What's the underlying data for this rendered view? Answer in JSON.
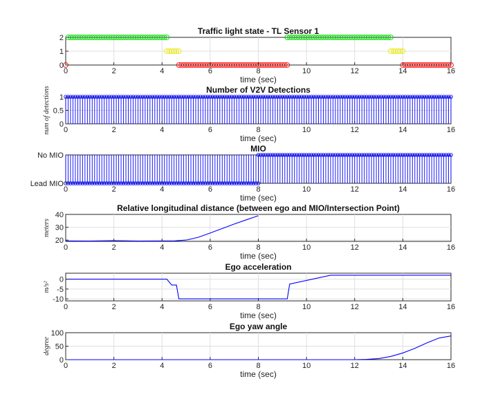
{
  "chart_data": [
    {
      "type": "scatter",
      "title": "Traffic light state - TL Sensor 1",
      "xlabel": "time (sec)",
      "ylabel": "",
      "xlim": [
        0,
        16
      ],
      "ylim": [
        0,
        2
      ],
      "xticks": [
        0,
        2,
        4,
        6,
        8,
        10,
        12,
        14,
        16
      ],
      "yticks": [
        0,
        1,
        2
      ],
      "ytick_labels": [
        "0",
        "1",
        "2"
      ],
      "grid": true,
      "series": [
        {
          "color": "#ff0000",
          "marker": "circle",
          "x": [
            0,
            0
          ],
          "y": [
            0,
            0
          ]
        },
        {
          "color": "#00dd00",
          "marker": "circle",
          "x": [
            0.1,
            4.2
          ],
          "y": [
            2,
            2
          ]
        },
        {
          "color": "#e8e800",
          "marker": "circle",
          "x": [
            4.2,
            4.7
          ],
          "y": [
            1,
            1
          ]
        },
        {
          "color": "#ff0000",
          "marker": "circle",
          "x": [
            4.7,
            9.2
          ],
          "y": [
            0,
            0
          ]
        },
        {
          "color": "#00dd00",
          "marker": "circle",
          "x": [
            9.2,
            13.5
          ],
          "y": [
            2,
            2
          ]
        },
        {
          "color": "#e8e800",
          "marker": "circle",
          "x": [
            13.5,
            14.0
          ],
          "y": [
            1,
            1
          ]
        },
        {
          "color": "#ff0000",
          "marker": "circle",
          "x": [
            14.0,
            16.0
          ],
          "y": [
            0,
            0
          ]
        }
      ]
    },
    {
      "type": "stem",
      "title": "Number of V2V Detections",
      "xlabel": "time (sec)",
      "ylabel": "num of detections",
      "xlim": [
        0,
        16
      ],
      "ylim": [
        0,
        1
      ],
      "xticks": [
        0,
        2,
        4,
        6,
        8,
        10,
        12,
        14,
        16
      ],
      "yticks": [
        0,
        0.5,
        1
      ],
      "ytick_labels": [
        "0",
        "0.5",
        "1"
      ],
      "grid": true,
      "series": [
        {
          "color": "#0000ff",
          "marker": "circle",
          "x_range": [
            0,
            16
          ],
          "step": 0.1,
          "value": 1
        }
      ]
    },
    {
      "type": "stem",
      "title": "MIO",
      "xlabel": "time (sec)",
      "ylabel": "",
      "xlim": [
        0,
        16
      ],
      "ylim": [
        0,
        1
      ],
      "xticks": [
        0,
        2,
        4,
        6,
        8,
        10,
        12,
        14,
        16
      ],
      "yticks": [
        0,
        1
      ],
      "ytick_labels": [
        "Lead MIO",
        "No MIO"
      ],
      "grid": true,
      "series": [
        {
          "color": "#0000ff",
          "marker": "circle",
          "x_range": [
            0,
            8
          ],
          "step": 0.1,
          "value": 0,
          "stem_to": 1
        },
        {
          "color": "#0000ff",
          "marker": "circle",
          "x_range": [
            8,
            16
          ],
          "step": 0.1,
          "value": 1
        }
      ]
    },
    {
      "type": "line",
      "title": "Relative longitudinal distance (between ego and MIO/Intersection Point)",
      "xlabel": "time (sec)",
      "ylabel": "meters",
      "xlim": [
        0,
        16
      ],
      "ylim": [
        19,
        40
      ],
      "xticks": [
        0,
        2,
        4,
        6,
        8,
        10,
        12,
        14,
        16
      ],
      "yticks": [
        20,
        30,
        40
      ],
      "ytick_labels": [
        "20",
        "30",
        "40"
      ],
      "grid": true,
      "series": [
        {
          "color": "#0000ff",
          "x": [
            0,
            1,
            2,
            3,
            4,
            4.5,
            5,
            5.5,
            6,
            6.5,
            7,
            7.5,
            8
          ],
          "y": [
            19.3,
            19.2,
            19.5,
            19.2,
            19.3,
            19.3,
            20.0,
            22.2,
            25.5,
            29.0,
            32.5,
            35.8,
            39.0
          ]
        }
      ]
    },
    {
      "type": "line",
      "title": "Ego acceleration",
      "xlabel": "time (sec)",
      "ylabel": "m/s²",
      "xlim": [
        0,
        16
      ],
      "ylim": [
        -11,
        3
      ],
      "xticks": [
        0,
        2,
        4,
        6,
        8,
        10,
        12,
        14,
        16
      ],
      "yticks": [
        -10,
        -5,
        0
      ],
      "ytick_labels": [
        "-10",
        "-5",
        "0"
      ],
      "grid": true,
      "series": [
        {
          "color": "#0000ff",
          "x": [
            0,
            4.2,
            4.4,
            4.6,
            4.7,
            9.2,
            9.3,
            11.0,
            16.0
          ],
          "y": [
            0,
            0,
            -3,
            -3,
            -10,
            -10,
            -2.5,
            2,
            2
          ]
        }
      ]
    },
    {
      "type": "line",
      "title": "Ego yaw angle",
      "xlabel": "time (sec)",
      "ylabel": "degree",
      "xlim": [
        0,
        16
      ],
      "ylim": [
        0,
        100
      ],
      "xticks": [
        0,
        2,
        4,
        6,
        8,
        10,
        12,
        14,
        16
      ],
      "yticks": [
        0,
        50,
        100
      ],
      "ytick_labels": [
        "0",
        "50",
        "100"
      ],
      "grid": true,
      "series": [
        {
          "color": "#0000ff",
          "x": [
            0,
            12.0,
            12.5,
            13.0,
            13.5,
            14.0,
            14.5,
            15.0,
            15.5,
            16.0
          ],
          "y": [
            0,
            0,
            1,
            4,
            12,
            25,
            42,
            62,
            80,
            88
          ]
        }
      ]
    }
  ]
}
